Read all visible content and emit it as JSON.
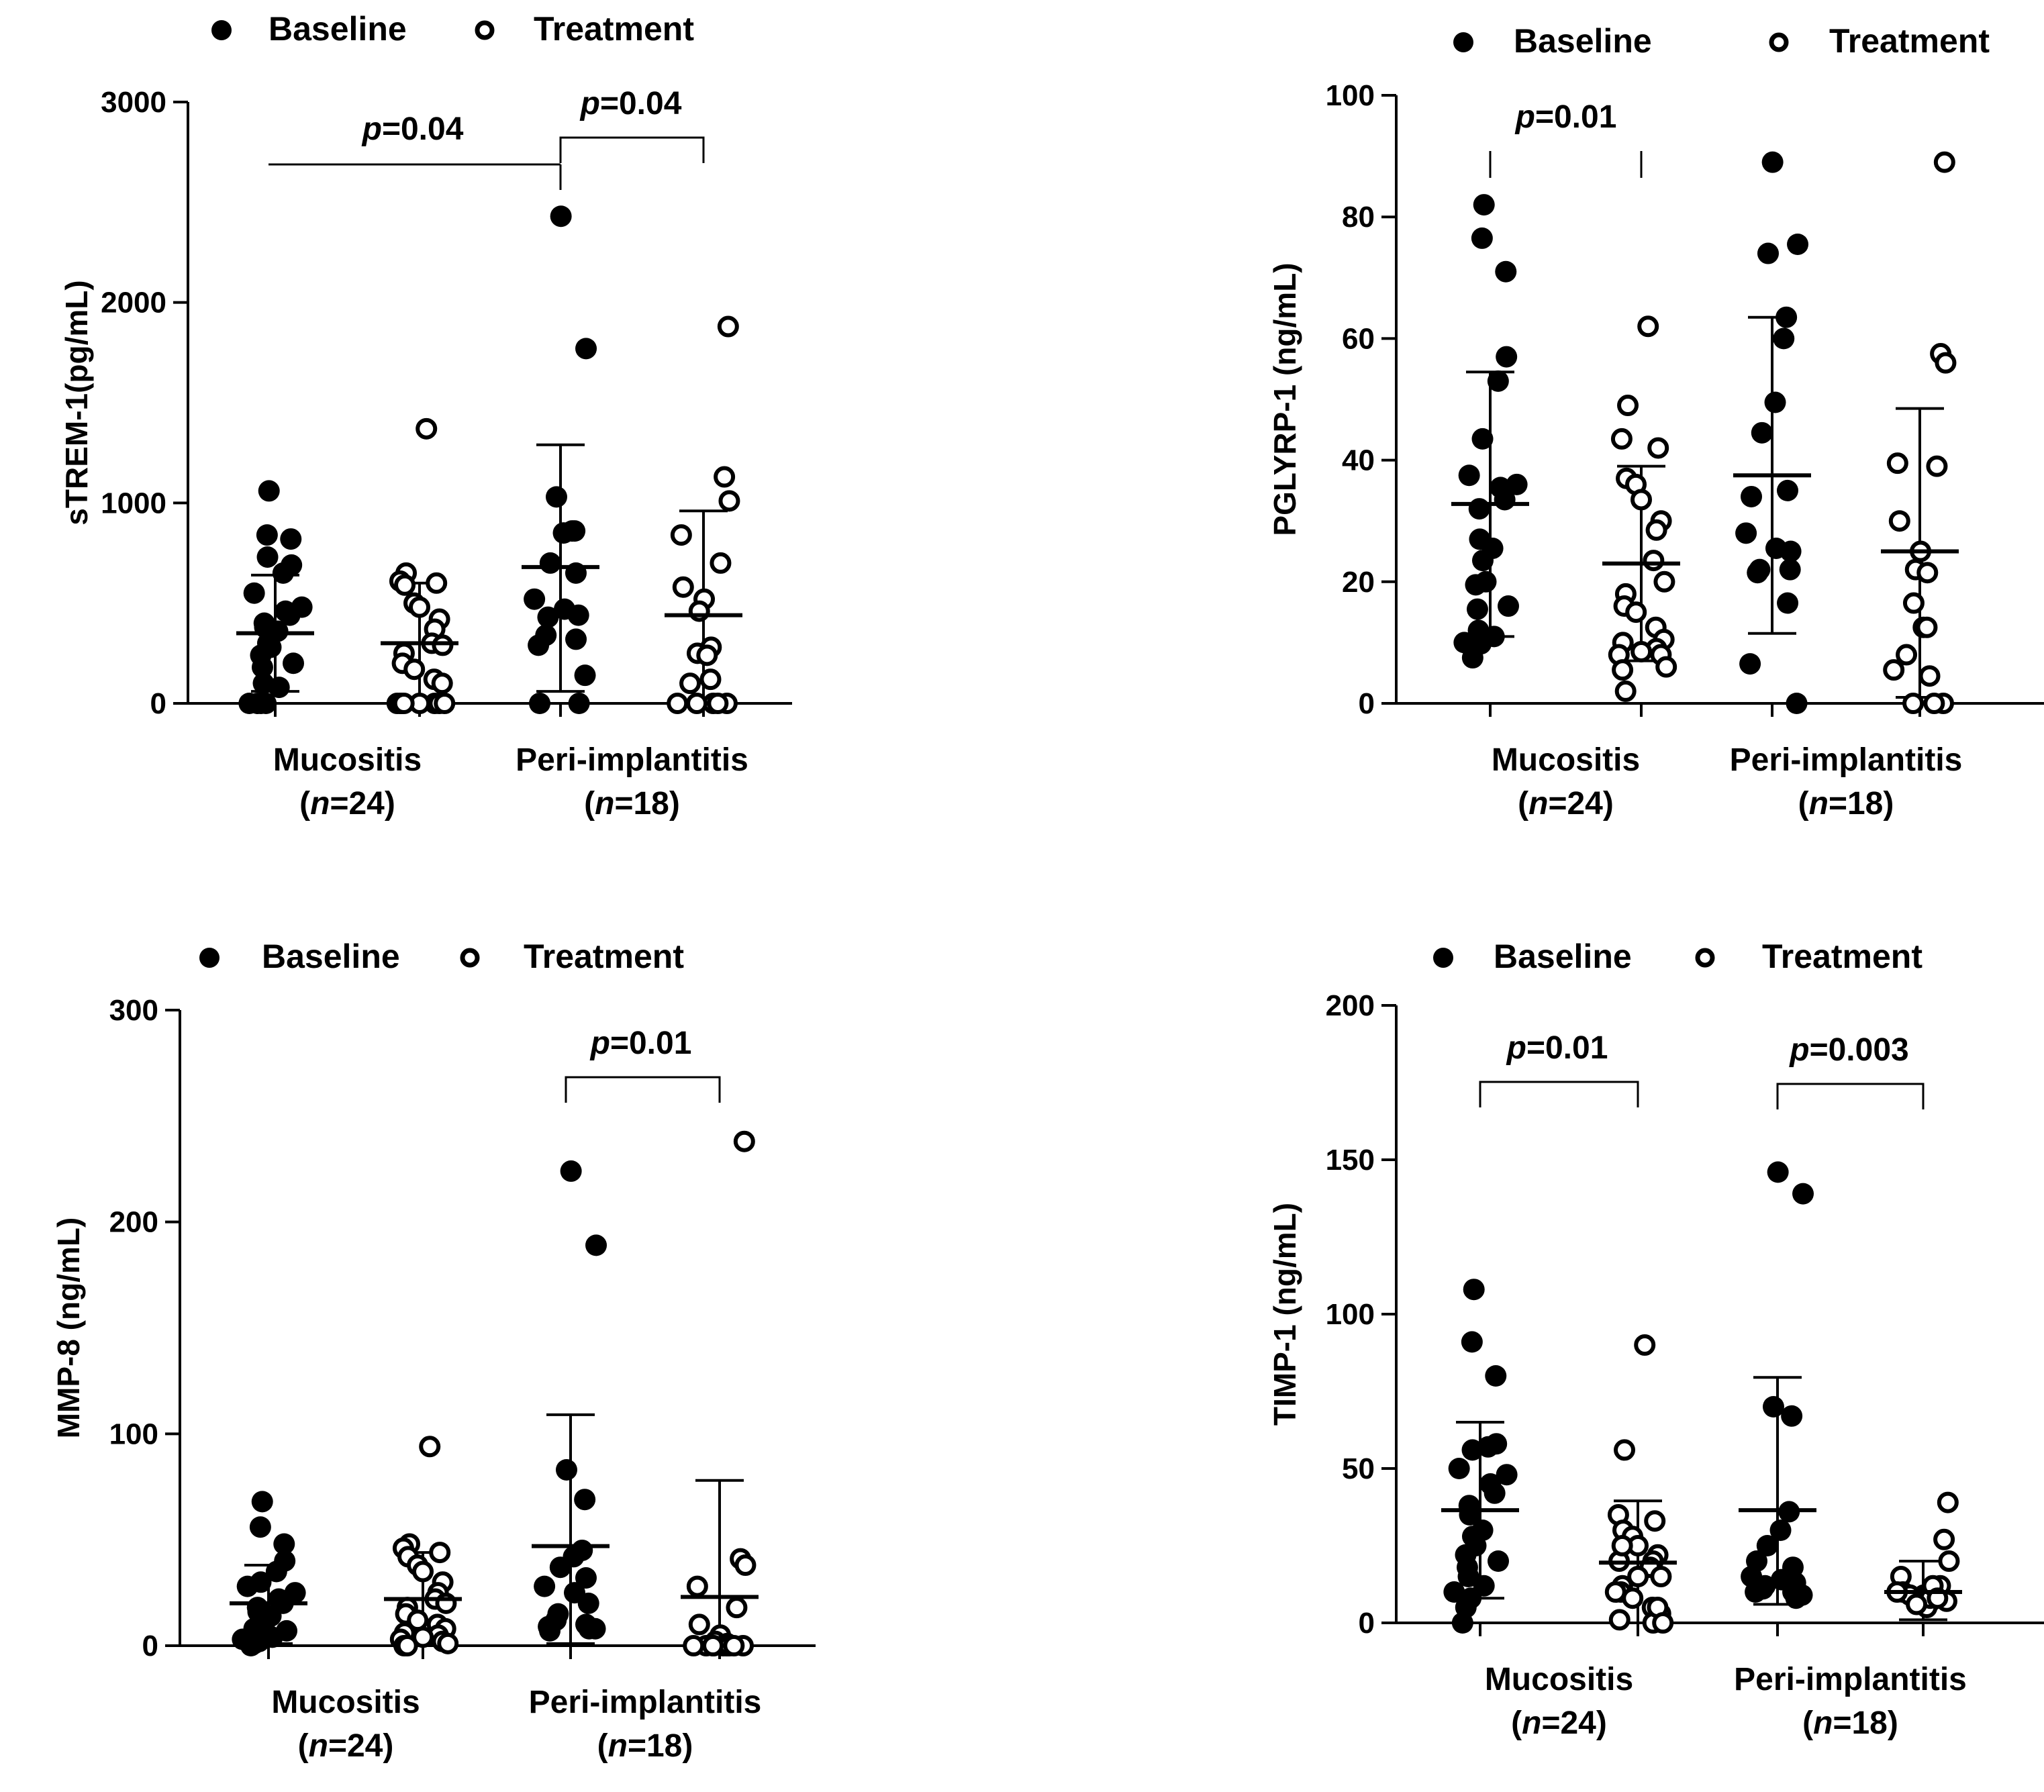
{
  "legend": {
    "baseline": "Baseline",
    "treatment": "Treatment"
  },
  "colors": {
    "ink": "#000000",
    "open_fill": "#ffffff"
  },
  "chart_data": [
    {
      "type": "scatter",
      "id": "strem",
      "ylabel": "sTREM-1(pg/mL)",
      "ylim": [
        0,
        3000
      ],
      "yticks": [
        0,
        1000,
        2000,
        3000
      ],
      "categories": [
        {
          "line1": "Mucositis",
          "n_prefix": "(",
          "n_italic": "n",
          "n_suffix": "=24)"
        },
        {
          "line1": "Peri-implantitis",
          "n_prefix": "(",
          "n_italic": "n",
          "n_suffix": "=18)"
        }
      ],
      "series": [
        {
          "name": "Baseline",
          "group": 0,
          "filled": true,
          "mean": 350,
          "sd_low": 60,
          "sd_high": 640,
          "values": [
            1060,
            840,
            820,
            690,
            650,
            730,
            550,
            480,
            460,
            440,
            400,
            380,
            360,
            300,
            280,
            240,
            200,
            180,
            100,
            80,
            0,
            0,
            0,
            0
          ]
        },
        {
          "name": "Treatment",
          "group": 0,
          "filled": false,
          "mean": 300,
          "sd_low": 0,
          "sd_high": 600,
          "values": [
            1370,
            650,
            610,
            600,
            590,
            500,
            480,
            420,
            370,
            300,
            290,
            250,
            200,
            170,
            120,
            100,
            0,
            0,
            0,
            0,
            0,
            0,
            0,
            0
          ]
        },
        {
          "name": "Baseline",
          "group": 1,
          "filled": true,
          "mean": 680,
          "sd_low": 60,
          "sd_high": 1290,
          "values": [
            2430,
            1770,
            1030,
            860,
            860,
            850,
            700,
            650,
            520,
            470,
            440,
            430,
            340,
            320,
            290,
            140,
            0,
            0
          ]
        },
        {
          "name": "Treatment",
          "group": 1,
          "filled": false,
          "mean": 440,
          "sd_low": 0,
          "sd_high": 960,
          "values": [
            1880,
            1130,
            1010,
            840,
            700,
            580,
            520,
            460,
            280,
            250,
            240,
            120,
            100,
            0,
            0,
            0,
            0,
            0
          ]
        }
      ],
      "annotations": [
        {
          "p_italic": "p",
          "p_rest": "=0.04",
          "kind": "long"
        },
        {
          "p_italic": "p",
          "p_rest": "=0.04",
          "kind": "bracket"
        }
      ]
    },
    {
      "type": "scatter",
      "id": "pglyrp",
      "ylabel": "PGLYRP-1 (ng/mL)",
      "ylim": [
        0,
        100
      ],
      "yticks": [
        0,
        20,
        40,
        60,
        80,
        100
      ],
      "categories": [
        {
          "line1": "Mucositis",
          "n_prefix": "(",
          "n_italic": "n",
          "n_suffix": "=24)"
        },
        {
          "line1": "Peri-implantitis",
          "n_prefix": "(",
          "n_italic": "n",
          "n_suffix": "=18)"
        }
      ],
      "series": [
        {
          "name": "Baseline",
          "group": 0,
          "filled": true,
          "mean": 32.8,
          "sd_low": 11,
          "sd_high": 54.5,
          "values": [
            82,
            76.5,
            71,
            57,
            53,
            43.5,
            37.5,
            36,
            35.5,
            33.5,
            32,
            27,
            25.5,
            23.5,
            20,
            19.5,
            16,
            15.5,
            12,
            11,
            10,
            9.8,
            9.5,
            7.5
          ]
        },
        {
          "name": "Treatment",
          "group": 0,
          "filled": false,
          "mean": 23,
          "sd_low": 7,
          "sd_high": 39,
          "values": [
            62,
            49,
            43.5,
            42,
            37,
            36,
            33.5,
            30,
            28.5,
            23.5,
            20,
            18,
            16,
            15,
            12.5,
            10.5,
            10,
            9,
            8.5,
            8,
            8,
            6,
            5.5,
            2
          ]
        },
        {
          "name": "Baseline",
          "group": 1,
          "filled": true,
          "mean": 37.5,
          "sd_low": 11.5,
          "sd_high": 63.5,
          "values": [
            89,
            75.5,
            74,
            63.5,
            60,
            49.5,
            44.5,
            35,
            28,
            25.5,
            22,
            22,
            21.5,
            16.5,
            6.5,
            0,
            25,
            34
          ]
        },
        {
          "name": "Treatment",
          "group": 1,
          "filled": false,
          "mean": 25,
          "sd_low": 1,
          "sd_high": 48.5,
          "values": [
            89,
            57.5,
            56,
            39.5,
            39,
            30,
            25,
            22,
            21.5,
            16.5,
            12.5,
            12.5,
            8,
            5.5,
            4.5,
            0,
            0,
            0
          ]
        }
      ],
      "annotations": [
        {
          "p_italic": "p",
          "p_rest": "=0.01",
          "kind": "ticks"
        }
      ]
    },
    {
      "type": "scatter",
      "id": "mmp8",
      "ylabel": "MMP-8 (ng/mL)",
      "ylim": [
        0,
        300
      ],
      "yticks": [
        0,
        100,
        200,
        300
      ],
      "categories": [
        {
          "line1": "Mucositis",
          "n_prefix": "(",
          "n_italic": "n",
          "n_suffix": "=24)"
        },
        {
          "line1": "Peri-implantitis",
          "n_prefix": "(",
          "n_italic": "n",
          "n_suffix": "=18)"
        }
      ],
      "series": [
        {
          "name": "Baseline",
          "group": 0,
          "filled": true,
          "mean": 20,
          "sd_low": 1,
          "sd_high": 38,
          "values": [
            68,
            56,
            48,
            40,
            35,
            30,
            28,
            25,
            22,
            20,
            18,
            16,
            14,
            12,
            10,
            8,
            7,
            6,
            5,
            4,
            3,
            2,
            1,
            0
          ]
        },
        {
          "name": "Treatment",
          "group": 0,
          "filled": false,
          "mean": 22,
          "sd_low": 1,
          "sd_high": 44,
          "values": [
            94,
            48,
            46,
            44,
            42,
            38,
            35,
            30,
            25,
            22,
            20,
            18,
            15,
            12,
            10,
            8,
            6,
            5,
            4,
            3,
            2,
            1,
            0,
            0
          ]
        },
        {
          "name": "Baseline",
          "group": 1,
          "filled": true,
          "mean": 47,
          "sd_low": 1,
          "sd_high": 109,
          "values": [
            224,
            189,
            83,
            69,
            45,
            42,
            37,
            32,
            28,
            25,
            20,
            15,
            12,
            10,
            9,
            8,
            8,
            7
          ]
        },
        {
          "name": "Treatment",
          "group": 1,
          "filled": false,
          "mean": 23,
          "sd_low": 0,
          "sd_high": 78,
          "values": [
            238,
            41,
            38,
            28,
            18,
            10,
            5,
            2,
            1,
            0,
            0,
            0,
            0,
            0,
            0,
            0,
            0,
            0
          ]
        }
      ],
      "annotations": [
        {
          "p_italic": "p",
          "p_rest": "=0.01",
          "kind": "bracket"
        }
      ]
    },
    {
      "type": "scatter",
      "id": "timp",
      "ylabel": "TIMP-1 (ng/mL)",
      "ylim": [
        0,
        200
      ],
      "yticks": [
        0,
        50,
        100,
        150,
        200
      ],
      "categories": [
        {
          "line1": "Mucositis",
          "n_prefix": "(",
          "n_italic": "n",
          "n_suffix": "=24)"
        },
        {
          "line1": "Peri-implantitis",
          "n_prefix": "(",
          "n_italic": "n",
          "n_suffix": "=18)"
        }
      ],
      "series": [
        {
          "name": "Baseline",
          "group": 0,
          "filled": true,
          "mean": 36.5,
          "sd_low": 8,
          "sd_high": 65,
          "values": [
            108,
            91,
            80,
            58,
            57,
            56,
            50,
            48,
            45,
            42,
            38,
            35,
            30,
            28,
            25,
            22,
            20,
            18,
            15,
            12,
            10,
            8,
            5,
            0
          ]
        },
        {
          "name": "Treatment",
          "group": 0,
          "filled": false,
          "mean": 19.5,
          "sd_low": 0,
          "sd_high": 39.5,
          "values": [
            90,
            56,
            35,
            33,
            30,
            28,
            25,
            22,
            20,
            18,
            15,
            12,
            10,
            8,
            5,
            3,
            1,
            0,
            15,
            10,
            5,
            0,
            20,
            25
          ]
        },
        {
          "name": "Baseline",
          "group": 1,
          "filled": true,
          "mean": 36.5,
          "sd_low": 6,
          "sd_high": 79.5,
          "values": [
            146,
            139,
            70,
            67,
            36,
            30,
            25,
            18,
            15,
            14,
            13,
            12,
            11,
            10,
            10,
            9,
            8,
            20
          ]
        },
        {
          "name": "Treatment",
          "group": 1,
          "filled": false,
          "mean": 10,
          "sd_low": 1,
          "sd_high": 20,
          "values": [
            39,
            27,
            20,
            15,
            12,
            10,
            9,
            8,
            7,
            6,
            5,
            8,
            9,
            10,
            12,
            6,
            7,
            8
          ]
        }
      ],
      "annotations": [
        {
          "p_italic": "p",
          "p_rest": "=0.01",
          "kind": "bracket",
          "group": 0
        },
        {
          "p_italic": "p",
          "p_rest": "=0.003",
          "kind": "bracket",
          "group": 1
        }
      ]
    }
  ]
}
